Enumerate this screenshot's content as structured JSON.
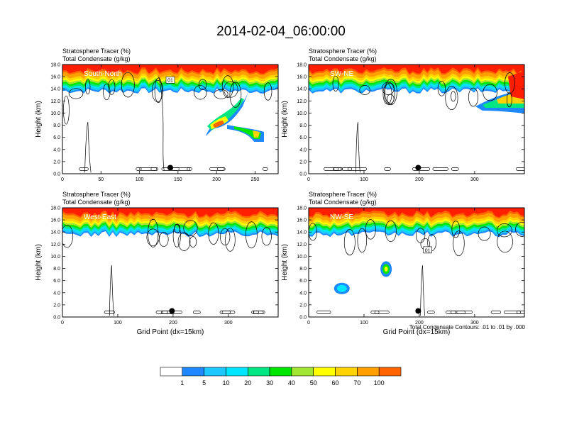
{
  "title": "2014-02-04_06:00:00",
  "colors": {
    "scale": [
      "#ffffff",
      "#1e88ff",
      "#1ec8ff",
      "#00e6ff",
      "#00e682",
      "#00e600",
      "#a0e632",
      "#ffff00",
      "#ffd200",
      "#ffa000",
      "#ff6400",
      "#ff1e00"
    ],
    "contour": "#000000"
  },
  "colorbar": {
    "labels": [
      "1",
      "5",
      "10",
      "20",
      "30",
      "40",
      "50",
      "60",
      "70",
      "100"
    ]
  },
  "footnote": "Total Condensate Contours: .01 to .01 by .000",
  "chart_data": [
    {
      "type": "heatmap",
      "panel_label": "South-North",
      "line1": "Stratosphere Tracer   (%)",
      "line2": "Total Condensate   (g/kg)",
      "ylabel": "Height (km)",
      "xlabel": "",
      "xlim": [
        0,
        280
      ],
      "ylim": [
        0,
        18
      ],
      "xticks": [
        "0",
        "50",
        "100",
        "150",
        "200",
        "250"
      ],
      "yticks": [
        "0.0",
        "2.0",
        "4.0",
        "6.0",
        "8.0",
        "10.0",
        "12.0",
        "14.0",
        "16.0",
        "18.0"
      ],
      "tracer_base_km": 15.6,
      "contour_label": "01",
      "marker_x": 140,
      "marker_y": 1.0
    },
    {
      "type": "heatmap",
      "panel_label": "SW-NE",
      "line1": "Stratosphere Tracer   (%)",
      "line2": "Total Condensate   (g/kg)",
      "ylabel": "Height (km)",
      "xlabel": "",
      "xlim": [
        0,
        390
      ],
      "ylim": [
        0,
        18
      ],
      "xticks": [
        "0",
        "100",
        "200",
        "300"
      ],
      "yticks": [
        "0.0",
        "2.0",
        "4.0",
        "6.0",
        "8.0",
        "10.0",
        "12.0",
        "14.0",
        "16.0",
        "18.0"
      ],
      "tracer_base_km": 15.6,
      "contour_label": "",
      "marker_x": 198,
      "marker_y": 1.0
    },
    {
      "type": "heatmap",
      "panel_label": "West-East",
      "line1": "Stratosphere Tracer   (%)",
      "line2": "Total Condensate   (g/kg)",
      "ylabel": "Height (km)",
      "xlabel": "Grid Point (dx=15km)",
      "xlim": [
        0,
        390
      ],
      "ylim": [
        0,
        18
      ],
      "xticks": [
        "0",
        "100",
        "200",
        "300"
      ],
      "yticks": [
        "0.0",
        "2.0",
        "4.0",
        "6.0",
        "8.0",
        "10.0",
        "12.0",
        "14.0",
        "16.0",
        "18.0"
      ],
      "tracer_base_km": 15.6,
      "contour_label": "",
      "marker_x": 198,
      "marker_y": 1.0
    },
    {
      "type": "heatmap",
      "panel_label": "NW-SE",
      "line1": "Stratosphere Tracer   (%)",
      "line2": "Total Condensate   (g/kg)",
      "ylabel": "Height (km)",
      "xlabel": "Grid Point (dx=15km)",
      "xlim": [
        0,
        390
      ],
      "ylim": [
        0,
        18
      ],
      "xticks": [
        "0",
        "100",
        "200",
        "300"
      ],
      "yticks": [
        "0.0",
        "2.0",
        "4.0",
        "6.0",
        "8.0",
        "10.0",
        "12.0",
        "14.0",
        "16.0",
        "18.0"
      ],
      "tracer_base_km": 15.6,
      "contour_label": "01",
      "marker_x": 198,
      "marker_y": 1.0
    }
  ]
}
